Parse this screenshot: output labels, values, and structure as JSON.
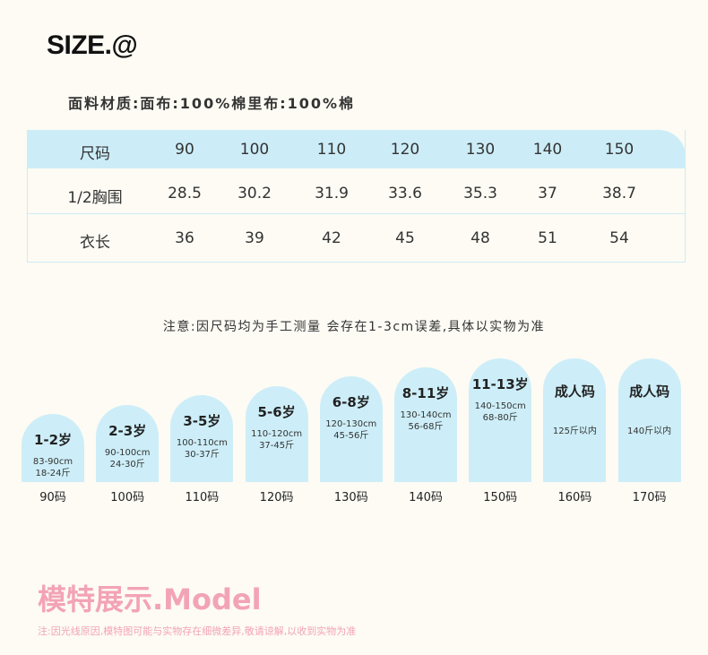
{
  "header": {
    "title": "SIZE.@",
    "material": "面料材质:面布:100%棉里布:100%棉"
  },
  "table": {
    "header": [
      "尺码",
      90,
      100,
      110,
      120,
      130,
      140,
      150
    ],
    "rows": [
      [
        "1/2胸围",
        28.5,
        30.2,
        31.9,
        33.6,
        35.3,
        37,
        38.7
      ],
      [
        "衣长",
        36,
        39,
        42,
        45,
        48,
        51,
        54
      ]
    ]
  },
  "note": "注意:因尺码均为手工测量 会存在1-3cm误差,具体以实物为准",
  "cards": [
    {
      "age": "1-2岁",
      "lines": [
        "83-90cm",
        "18-24斤"
      ],
      "size": "90码"
    },
    {
      "age": "2-3岁",
      "lines": [
        "90-100cm",
        "24-30斤"
      ],
      "size": "100码"
    },
    {
      "age": "3-5岁",
      "lines": [
        "100-110cm",
        "30-37斤"
      ],
      "size": "110码"
    },
    {
      "age": "5-6岁",
      "lines": [
        "110-120cm",
        "37-45斤"
      ],
      "size": "120码"
    },
    {
      "age": "6-8岁",
      "lines": [
        "120-130cm",
        "45-56斤"
      ],
      "size": "130码"
    },
    {
      "age": "8-11岁",
      "lines": [
        "130-140cm",
        "56-68斤"
      ],
      "size": "140码"
    },
    {
      "age": "11-13岁",
      "lines": [
        "140-150cm",
        "68-80斤"
      ],
      "size": "150码"
    },
    {
      "age": "成人码",
      "lines": [
        "125斤以内"
      ],
      "size": "160码"
    },
    {
      "age": "成人码",
      "lines": [
        "140斤以内"
      ],
      "size": "170码"
    }
  ],
  "model_title": "模特展示.Model",
  "footer_note": "注:因光线原因,模特图可能与实物存在细微差异,敬请谅解,以收到实物为准"
}
